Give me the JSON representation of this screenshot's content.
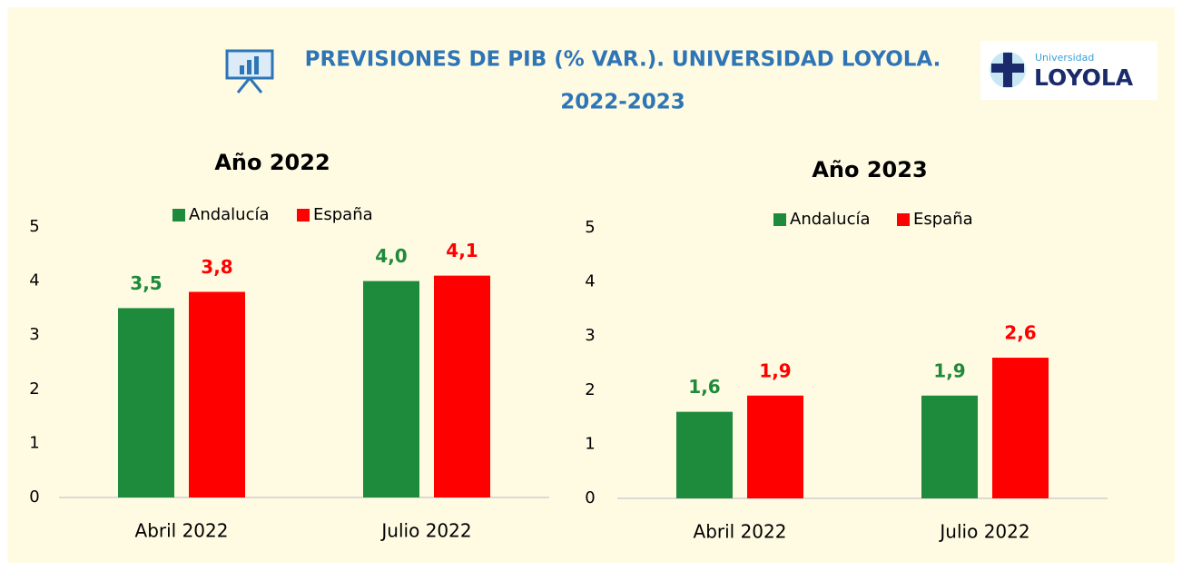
{
  "header": {
    "title": [
      "PREVISIONES DE PIB (% VAR.). UNIVERSIDAD LOYOLA.",
      "2022-2023"
    ],
    "logo": [
      "Universidad",
      "LOYOLA"
    ]
  },
  "chart_data": [
    {
      "type": "bar",
      "title": "Año 2022",
      "categories": [
        "Abril 2022",
        "Julio 2022"
      ],
      "series": [
        {
          "name": "Andalucía",
          "color": "#1e8a3c",
          "values": [
            3.5,
            4.0
          ],
          "value_labels": [
            "3,5",
            "4,0"
          ]
        },
        {
          "name": "España",
          "color": "#ff0000",
          "values": [
            3.8,
            4.1
          ],
          "value_labels": [
            "3,8",
            "4,1"
          ]
        }
      ],
      "ylim": [
        0,
        5
      ],
      "yticks": [
        0,
        1,
        2,
        3,
        4,
        5
      ],
      "grid": false,
      "legend": "top"
    },
    {
      "type": "bar",
      "title": "Año 2023",
      "categories": [
        "Abril 2022",
        "Julio 2022"
      ],
      "series": [
        {
          "name": "Andalucía",
          "color": "#1e8a3c",
          "values": [
            1.6,
            1.9
          ],
          "value_labels": [
            "1,6",
            "1,9"
          ]
        },
        {
          "name": "España",
          "color": "#ff0000",
          "values": [
            1.9,
            2.6
          ],
          "value_labels": [
            "1,9",
            "2,6"
          ]
        }
      ],
      "ylim": [
        0,
        5
      ],
      "yticks": [
        0,
        1,
        2,
        3,
        4,
        5
      ],
      "grid": false,
      "legend": "top"
    }
  ]
}
